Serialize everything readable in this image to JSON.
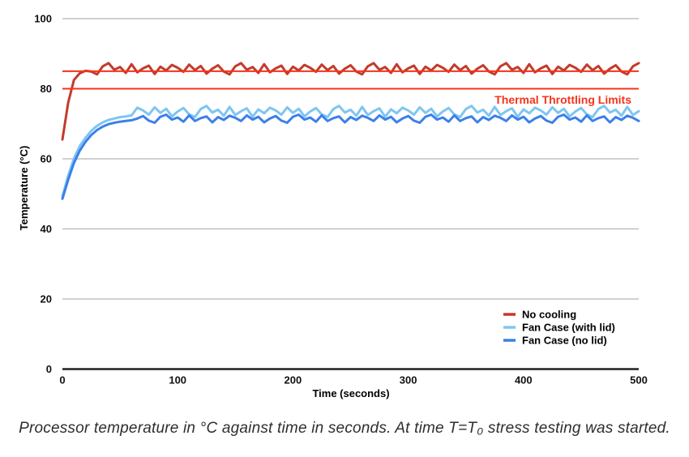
{
  "figure": {
    "caption": "Processor temperature in °C against time in seconds. At time T=T₀ stress testing was started."
  },
  "chart_data": {
    "type": "line",
    "title": "",
    "xlabel": "Time (seconds)",
    "ylabel": "Temperature (°C)",
    "xlim": [
      0,
      500
    ],
    "ylim": [
      0,
      100
    ],
    "x_ticks": [
      0,
      100,
      200,
      300,
      400,
      500
    ],
    "y_ticks": [
      0,
      20,
      40,
      60,
      80,
      100
    ],
    "grid": "horizontal-only",
    "legend_position": "bottom-right",
    "colors": {
      "grid": "#b5b5b5",
      "axis": "#212121",
      "tick_text": "#111111",
      "background": "#ffffff"
    },
    "annotation": {
      "label": "Thermal Throttling Limits",
      "color": "#f5331d",
      "limit_values": [
        80,
        85
      ]
    },
    "x": [
      0,
      5,
      10,
      15,
      20,
      25,
      30,
      35,
      40,
      45,
      50,
      55,
      60,
      65,
      70,
      75,
      80,
      85,
      90,
      95,
      100,
      105,
      110,
      115,
      120,
      125,
      130,
      135,
      140,
      145,
      150,
      155,
      160,
      165,
      170,
      175,
      180,
      185,
      190,
      195,
      200,
      205,
      210,
      215,
      220,
      225,
      230,
      235,
      240,
      245,
      250,
      255,
      260,
      265,
      270,
      275,
      280,
      285,
      290,
      295,
      300,
      305,
      310,
      315,
      320,
      325,
      330,
      335,
      340,
      345,
      350,
      355,
      360,
      365,
      370,
      375,
      380,
      385,
      390,
      395,
      400,
      405,
      410,
      415,
      420,
      425,
      430,
      435,
      440,
      445,
      450,
      455,
      460,
      465,
      470,
      475,
      480,
      485,
      490,
      495,
      500
    ],
    "series": [
      {
        "name": "No cooling",
        "color": "#c23b2b",
        "y": [
          65.5,
          76.0,
          82.5,
          84.4,
          85.1,
          84.9,
          84.1,
          86.4,
          87.3,
          85.4,
          86.2,
          84.5,
          87.0,
          84.7,
          85.8,
          86.6,
          84.2,
          86.3,
          85.2,
          86.8,
          86.0,
          84.8,
          86.9,
          85.3,
          86.5,
          84.3,
          85.7,
          86.7,
          84.9,
          84.1,
          86.4,
          87.3,
          85.4,
          86.2,
          84.5,
          87.0,
          84.7,
          85.8,
          86.6,
          84.2,
          86.3,
          85.2,
          86.8,
          86.0,
          84.8,
          86.9,
          85.3,
          86.5,
          84.3,
          85.7,
          86.7,
          84.9,
          84.1,
          86.4,
          87.3,
          85.4,
          86.2,
          84.5,
          87.0,
          84.7,
          85.8,
          86.6,
          84.2,
          86.3,
          85.2,
          86.8,
          86.0,
          84.8,
          86.9,
          85.3,
          86.5,
          84.3,
          85.7,
          86.7,
          84.9,
          84.1,
          86.4,
          87.3,
          85.4,
          86.2,
          84.5,
          87.0,
          84.7,
          85.8,
          86.6,
          84.2,
          86.3,
          85.2,
          86.8,
          86.0,
          84.8,
          86.9,
          85.3,
          86.5,
          84.3,
          85.7,
          86.7,
          84.9,
          84.1,
          86.4,
          87.3
        ]
      },
      {
        "name": "Fan Case (with lid)",
        "color": "#7ec5f2",
        "y": [
          49.3,
          55.2,
          60.1,
          63.6,
          66.0,
          68.0,
          69.4,
          70.4,
          71.1,
          71.5,
          71.9,
          72.1,
          72.4,
          74.6,
          73.8,
          72.6,
          74.7,
          73.1,
          74.3,
          72.1,
          73.5,
          74.5,
          72.7,
          71.9,
          74.2,
          75.1,
          73.2,
          74.0,
          72.3,
          74.8,
          72.5,
          73.6,
          74.4,
          72.0,
          74.1,
          73.0,
          74.6,
          73.8,
          72.6,
          74.7,
          73.1,
          74.3,
          72.1,
          73.5,
          74.5,
          72.7,
          71.9,
          74.2,
          75.1,
          73.2,
          74.0,
          72.3,
          74.8,
          72.5,
          73.6,
          74.4,
          72.0,
          74.1,
          73.0,
          74.6,
          73.8,
          72.6,
          74.7,
          73.1,
          74.3,
          72.1,
          73.5,
          74.5,
          72.7,
          71.9,
          74.2,
          75.1,
          73.2,
          74.0,
          72.3,
          74.8,
          72.5,
          73.6,
          74.4,
          72.0,
          74.1,
          73.0,
          74.6,
          73.8,
          72.6,
          74.7,
          73.1,
          74.3,
          72.1,
          73.5,
          74.5,
          72.7,
          71.9,
          74.2,
          75.1,
          73.2,
          74.0,
          72.3,
          74.8,
          72.5,
          73.6
        ]
      },
      {
        "name": "Fan Case (no lid)",
        "color": "#3c80e8",
        "y": [
          48.6,
          54.0,
          58.8,
          62.3,
          64.8,
          66.8,
          68.2,
          69.2,
          69.9,
          70.3,
          70.6,
          70.8,
          71.0,
          71.5,
          72.2,
          70.9,
          70.3,
          72.0,
          72.6,
          71.2,
          71.8,
          70.6,
          72.4,
          70.8,
          71.6,
          72.1,
          70.4,
          71.9,
          71.1,
          72.3,
          71.7,
          70.8,
          72.4,
          71.2,
          72.0,
          70.4,
          71.5,
          72.2,
          70.9,
          70.3,
          72.0,
          72.6,
          71.2,
          71.8,
          70.6,
          72.4,
          70.8,
          71.6,
          72.1,
          70.4,
          71.9,
          71.1,
          72.3,
          71.7,
          70.8,
          72.4,
          71.2,
          72.0,
          70.4,
          71.5,
          72.2,
          70.9,
          70.3,
          72.0,
          72.6,
          71.2,
          71.8,
          70.6,
          72.4,
          70.8,
          71.6,
          72.1,
          70.4,
          71.9,
          71.1,
          72.3,
          71.7,
          70.8,
          72.4,
          71.2,
          72.0,
          70.4,
          71.5,
          72.2,
          70.9,
          70.3,
          72.0,
          72.6,
          71.2,
          71.8,
          70.6,
          72.4,
          70.8,
          71.6,
          72.1,
          70.4,
          71.9,
          71.1,
          72.3,
          71.7,
          70.8
        ]
      }
    ]
  }
}
